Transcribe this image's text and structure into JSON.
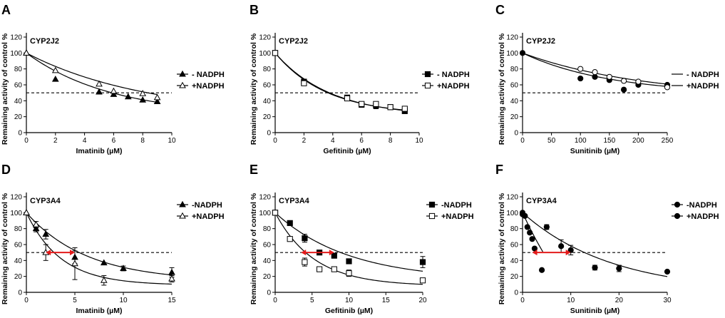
{
  "chart_data": [
    {
      "panel": "A",
      "title": "CYP2J2",
      "type": "scatter",
      "xlabel": "Imatinib (µM)",
      "ylabel": "Remaining activity of control %",
      "xlim": [
        0,
        10
      ],
      "ylim": [
        0,
        120
      ],
      "xticks": [
        0,
        2,
        4,
        6,
        8,
        10
      ],
      "yticks": [
        0,
        20,
        40,
        60,
        80,
        100,
        120
      ],
      "reference_y": 50,
      "legend_position": "right",
      "series": [
        {
          "name": "- NADPH",
          "marker": "triangle-filled",
          "x": [
            0,
            2,
            5,
            6,
            7,
            8,
            9
          ],
          "y": [
            100,
            67,
            51,
            48,
            45,
            41,
            39
          ],
          "fit": {
            "model": "exp_plateau",
            "top": 100,
            "plateau": 21,
            "k": 0.17
          }
        },
        {
          "name": "+NADPH",
          "marker": "triangle-open",
          "x": [
            0,
            2,
            5,
            6,
            8,
            9
          ],
          "y": [
            100,
            78,
            61,
            52,
            49,
            44
          ],
          "fit": {
            "model": "exp_plateau",
            "top": 100,
            "plateau": 21,
            "k": 0.12
          }
        }
      ]
    },
    {
      "panel": "B",
      "title": "CYP2J2",
      "type": "scatter",
      "xlabel": "Gefitinib (µM)",
      "ylabel": "Remaining activity of control %",
      "xlim": [
        0,
        10
      ],
      "ylim": [
        0,
        120
      ],
      "xticks": [
        0,
        2,
        4,
        6,
        8,
        10
      ],
      "yticks": [
        0,
        20,
        40,
        60,
        80,
        100,
        120
      ],
      "reference_y": 50,
      "legend_position": "right",
      "series": [
        {
          "name": "- NADPH",
          "marker": "square-filled",
          "x": [
            0,
            2,
            5,
            6,
            7,
            8,
            9
          ],
          "y": [
            100,
            64,
            44,
            35,
            34,
            32,
            27
          ],
          "err": [
            0,
            0,
            0,
            0,
            4,
            2,
            0
          ],
          "fit": {
            "model": "exp_plateau",
            "top": 100,
            "plateau": 20,
            "k": 0.26
          }
        },
        {
          "name": "+NADPH",
          "marker": "square-open",
          "x": [
            0,
            2,
            5,
            6,
            7,
            8,
            9
          ],
          "y": [
            100,
            62,
            43,
            36,
            36,
            32,
            30
          ],
          "err": [
            0,
            0,
            0,
            0,
            2,
            2,
            0
          ],
          "fit": {
            "model": "exp_plateau",
            "top": 100,
            "plateau": 22,
            "k": 0.28
          }
        }
      ]
    },
    {
      "panel": "C",
      "title": "CYP2J2",
      "type": "scatter",
      "xlabel": "Sunitinib (µM)",
      "ylabel": "Remaining activity of control %",
      "xlim": [
        0,
        250
      ],
      "ylim": [
        0,
        120
      ],
      "xticks": [
        0,
        50,
        100,
        150,
        200,
        250
      ],
      "yticks": [
        0,
        20,
        40,
        60,
        80,
        100,
        120
      ],
      "reference_y": 50,
      "legend_position": "right",
      "series": [
        {
          "name": "- NADPH",
          "marker": "circle-filled",
          "x": [
            0,
            100,
            125,
            150,
            175,
            200,
            250
          ],
          "y": [
            100,
            68,
            70,
            66,
            54,
            60,
            60
          ],
          "fit": {
            "model": "exp_plateau",
            "top": 100,
            "plateau": 48,
            "k": 0.0066
          }
        },
        {
          "name": "+NADPH",
          "marker": "circle-open",
          "x": [
            100,
            125,
            150,
            175,
            200,
            250
          ],
          "y": [
            80,
            76,
            70,
            65,
            64,
            57
          ],
          "fit": {
            "model": "exp_plateau",
            "top": 100,
            "plateau": 44,
            "k": 0.0048
          }
        }
      ]
    },
    {
      "panel": "D",
      "title": "CYP3A4",
      "type": "scatter",
      "xlabel": "Imatinib (µM)",
      "ylabel": "Remaining activity of control %",
      "xlim": [
        0,
        15
      ],
      "ylim": [
        0,
        120
      ],
      "xticks": [
        0,
        5,
        10,
        15
      ],
      "yticks": [
        0,
        20,
        40,
        60,
        80,
        100,
        120
      ],
      "reference_y": 50,
      "legend_position": "right",
      "arrow": {
        "from_x": 2,
        "to_x": 5,
        "y": 50
      },
      "series": [
        {
          "name": "-NADPH",
          "marker": "triangle-filled",
          "x": [
            0,
            1,
            2,
            5,
            8,
            10,
            15
          ],
          "y": [
            100,
            80,
            73,
            44,
            37,
            30,
            25
          ],
          "err": [
            0,
            4,
            6,
            8,
            0,
            3,
            6
          ],
          "fit": {
            "model": "exp_plateau",
            "top": 100,
            "plateau": 14,
            "k": 0.16
          }
        },
        {
          "name": "+NADPH",
          "marker": "triangle-open",
          "x": [
            0,
            1,
            2,
            5,
            8,
            15
          ],
          "y": [
            100,
            85,
            50,
            36,
            15,
            17
          ],
          "err": [
            0,
            4,
            10,
            20,
            6,
            4
          ],
          "fit": {
            "model": "exp_plateau",
            "top": 100,
            "plateau": 9,
            "k": 0.28
          }
        }
      ]
    },
    {
      "panel": "E",
      "title": "CYP3A4",
      "type": "scatter",
      "xlabel": "Gefitinib (µM)",
      "ylabel": "Remaining activity of control %",
      "xlim": [
        0,
        20
      ],
      "ylim": [
        0,
        120
      ],
      "xticks": [
        0,
        5,
        10,
        15,
        20
      ],
      "yticks": [
        0,
        20,
        40,
        60,
        80,
        100,
        120
      ],
      "reference_y": 50,
      "legend_position": "right",
      "arrow": {
        "from_x": 3.5,
        "to_x": 8,
        "y": 50
      },
      "series": [
        {
          "name": "-NADPH",
          "marker": "square-filled",
          "x": [
            0,
            2,
            4,
            6,
            8,
            10,
            20
          ],
          "y": [
            100,
            87,
            68,
            50,
            46,
            39,
            38
          ],
          "err": [
            0,
            0,
            5,
            0,
            0,
            0,
            7
          ],
          "fit": {
            "model": "exp_plateau",
            "top": 100,
            "plateau": 15,
            "k": 0.1
          }
        },
        {
          "name": "+NADPH",
          "marker": "square-open",
          "x": [
            0,
            2,
            4,
            6,
            8,
            10,
            20
          ],
          "y": [
            100,
            67,
            38,
            29,
            29,
            24,
            15
          ],
          "err": [
            0,
            0,
            5,
            0,
            0,
            4,
            0
          ],
          "fit": {
            "model": "exp_plateau",
            "top": 100,
            "plateau": 8,
            "k": 0.19
          }
        }
      ]
    },
    {
      "panel": "F",
      "title": "CYP3A4",
      "type": "scatter",
      "xlabel": "Sunitinib (µM)",
      "ylabel": "Remaining activity of control %",
      "xlim": [
        0,
        30
      ],
      "ylim": [
        0,
        120
      ],
      "xticks": [
        0,
        10,
        20,
        30
      ],
      "yticks": [
        0,
        20,
        40,
        60,
        80,
        100,
        120
      ],
      "reference_y": 50,
      "legend_position": "right",
      "arrow": {
        "from_x": 2,
        "to_x": 10,
        "y": 50
      },
      "series": [
        {
          "name": "-NADPH",
          "marker": "circle-filled",
          "x": [
            0,
            0.5,
            1,
            1.5,
            2,
            2.5,
            4
          ],
          "y": [
            98,
            96,
            82,
            75,
            67,
            55,
            28
          ],
          "err": [
            0,
            0,
            0,
            0,
            0,
            0,
            0
          ],
          "fit": {
            "model": "exp_plateau",
            "top": 100,
            "plateau": -120,
            "k": 0.06,
            "xmax": 4.2
          }
        },
        {
          "name": "+NADPH",
          "marker": "circle-filled",
          "x": [
            0,
            5,
            8,
            10,
            15,
            20,
            30
          ],
          "y": [
            100,
            82,
            58,
            53,
            31,
            30,
            26
          ],
          "err": [
            0,
            3,
            8,
            6,
            3,
            4,
            0
          ],
          "fit": {
            "model": "exp_plateau",
            "top": 100,
            "plateau": 0,
            "k": 0.054
          }
        }
      ]
    }
  ]
}
